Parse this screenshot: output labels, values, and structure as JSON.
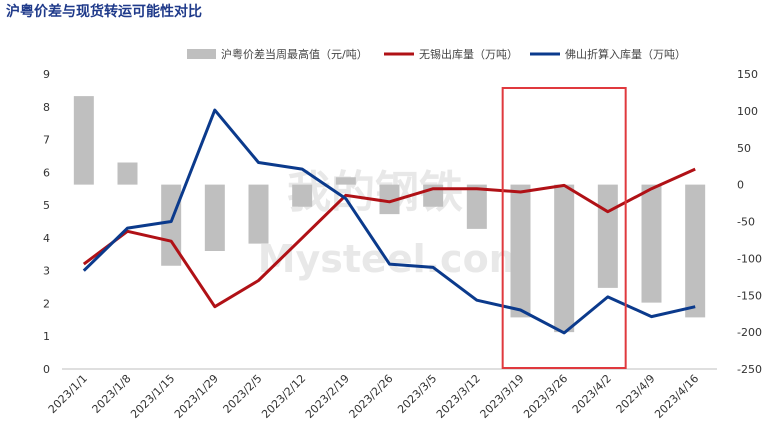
{
  "title": "沪粤价差与现货转运可能性对比",
  "watermark": {
    "cn": "我的钢铁",
    "en": "Mysteel.com"
  },
  "chart_data": {
    "type": "bar+line",
    "categories": [
      "2023/1/1",
      "2023/1/8",
      "2023/1/15",
      "2023/1/29",
      "2023/2/5",
      "2023/2/12",
      "2023/2/19",
      "2023/2/26",
      "2023/3/5",
      "2023/3/12",
      "2023/3/19",
      "2023/3/26",
      "2023/4/2",
      "2023/4/9",
      "2023/4/16"
    ],
    "y_left": {
      "min": 0,
      "max": 9,
      "ticks": [
        0,
        1,
        2,
        3,
        4,
        5,
        6,
        7,
        8,
        9
      ]
    },
    "y_right": {
      "min": -250,
      "max": 150,
      "ticks": [
        -250,
        -200,
        -150,
        -100,
        -50,
        0,
        50,
        100,
        150
      ]
    },
    "series": [
      {
        "name": "沪粤价差当周最高值（元/吨）",
        "type": "bar",
        "axis": "right",
        "color": "#bfbfbf",
        "values": [
          120,
          30,
          -110,
          -90,
          -80,
          -30,
          10,
          -40,
          -30,
          -60,
          -180,
          -200,
          -140,
          -160,
          -180
        ]
      },
      {
        "name": "无锡出库量（万吨）",
        "type": "line",
        "axis": "left",
        "color": "#b01116",
        "values": [
          3.2,
          4.2,
          3.9,
          1.9,
          2.7,
          4.0,
          5.3,
          5.1,
          5.5,
          5.5,
          5.4,
          5.6,
          4.8,
          5.5,
          6.1
        ]
      },
      {
        "name": "佛山折算入库量（万吨）",
        "type": "line",
        "axis": "left",
        "color": "#0b3a8c",
        "values": [
          3.0,
          4.3,
          4.5,
          7.9,
          6.3,
          6.1,
          5.2,
          3.2,
          3.1,
          2.1,
          1.8,
          1.1,
          2.2,
          1.6,
          1.9
        ]
      }
    ],
    "annotation": {
      "type": "highlight-box",
      "from": "2023/3/19",
      "to": "2023/4/2",
      "color": "#e0393e"
    },
    "legend_position": "top"
  }
}
